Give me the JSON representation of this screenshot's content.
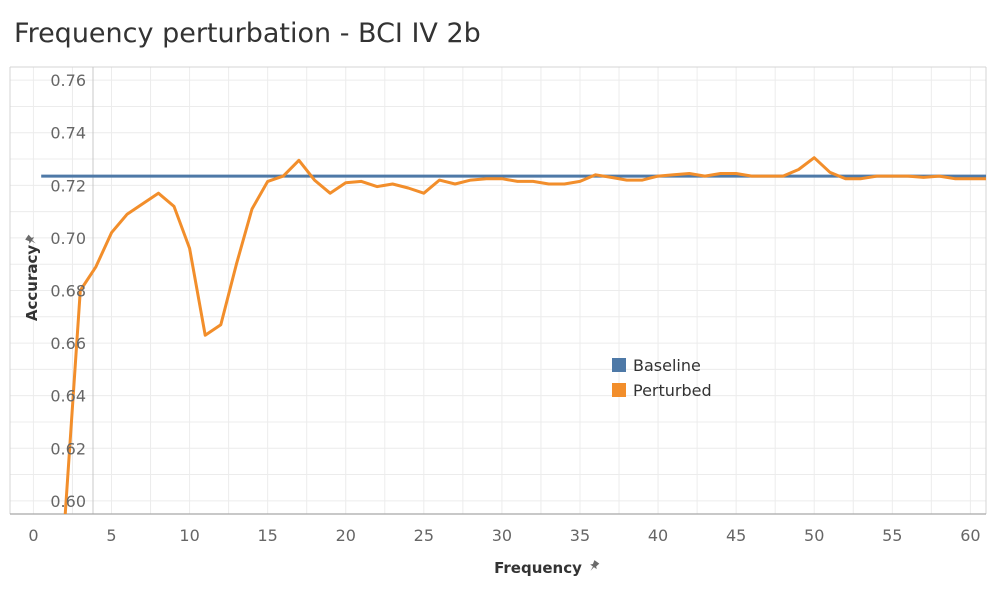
{
  "chart_data": {
    "type": "line",
    "title": "Frequency perturbation - BCI IV 2b",
    "xlabel": "Frequency",
    "ylabel": "Accuracy",
    "xlim": [
      -1.5,
      61
    ],
    "ylim": [
      0.595,
      0.765
    ],
    "x_ticks": [
      0,
      5,
      10,
      15,
      20,
      25,
      30,
      35,
      40,
      45,
      50,
      55,
      60
    ],
    "x_tick_labels": [
      "0",
      "5",
      "10",
      "15",
      "20",
      "25",
      "30",
      "35",
      "40",
      "45",
      "50",
      "55",
      "60"
    ],
    "y_ticks": [
      0.6,
      0.62,
      0.64,
      0.66,
      0.68,
      0.7,
      0.72,
      0.74,
      0.76
    ],
    "y_tick_labels": [
      "0.60",
      "0.62",
      "0.64",
      "0.66",
      "0.68",
      "0.70",
      "0.72",
      "0.74",
      "0.76"
    ],
    "grid": true,
    "legend_position": "center-right",
    "series": [
      {
        "name": "Baseline",
        "color": "#4e79a7",
        "x": [
          0.5,
          61
        ],
        "y": [
          0.7235,
          0.7235
        ]
      },
      {
        "name": "Perturbed",
        "color": "#f28e2b",
        "x": [
          2,
          3,
          4,
          5,
          6,
          7,
          8,
          9,
          10,
          11,
          12,
          13,
          14,
          15,
          16,
          17,
          18,
          19,
          20,
          21,
          22,
          23,
          24,
          25,
          26,
          27,
          28,
          29,
          30,
          31,
          32,
          33,
          34,
          35,
          36,
          37,
          38,
          39,
          40,
          41,
          42,
          43,
          44,
          45,
          46,
          47,
          48,
          49,
          50,
          51,
          52,
          53,
          54,
          55,
          56,
          57,
          58,
          59,
          60,
          61
        ],
        "y": [
          0.592,
          0.68,
          0.689,
          0.702,
          0.709,
          0.713,
          0.717,
          0.712,
          0.696,
          0.663,
          0.667,
          0.69,
          0.711,
          0.7215,
          0.7235,
          0.7295,
          0.722,
          0.717,
          0.721,
          0.7215,
          0.7195,
          0.7205,
          0.719,
          0.717,
          0.722,
          0.7205,
          0.722,
          0.7225,
          0.7225,
          0.7215,
          0.7215,
          0.7205,
          0.7205,
          0.7215,
          0.724,
          0.723,
          0.722,
          0.722,
          0.7235,
          0.724,
          0.7245,
          0.7235,
          0.7245,
          0.7245,
          0.7235,
          0.7235,
          0.7235,
          0.726,
          0.7305,
          0.725,
          0.7225,
          0.7225,
          0.7235,
          0.7235,
          0.7235,
          0.723,
          0.7235,
          0.7225,
          0.7225,
          0.7225
        ]
      }
    ]
  }
}
